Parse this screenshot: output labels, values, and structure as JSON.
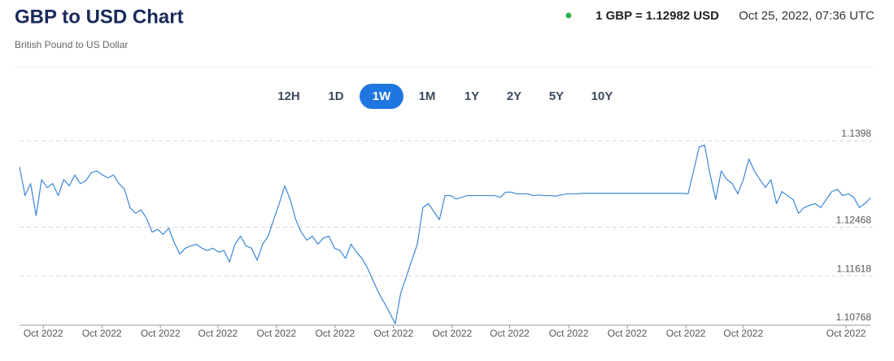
{
  "header": {
    "title": "GBP to USD Chart",
    "subtitle": "British Pound to US Dollar",
    "rate": "1 GBP = 1.12982 USD",
    "timestamp": "Oct 25, 2022, 07:36 UTC"
  },
  "ranges": [
    "12H",
    "1D",
    "1W",
    "1M",
    "1Y",
    "2Y",
    "5Y",
    "10Y"
  ],
  "active_range": 2,
  "chart_data": {
    "type": "line",
    "color": "#3b87d8",
    "values": [
      1.1352,
      1.1302,
      1.1323,
      1.1267,
      1.133,
      1.1316,
      1.1323,
      1.1302,
      1.133,
      1.1319,
      1.1338,
      1.1323,
      1.1328,
      1.1342,
      1.1345,
      1.1338,
      1.1333,
      1.1338,
      1.1323,
      1.1313,
      1.1281,
      1.1271,
      1.1277,
      1.1262,
      1.1238,
      1.1243,
      1.1234,
      1.1245,
      1.122,
      1.12,
      1.121,
      1.1214,
      1.1217,
      1.121,
      1.1206,
      1.121,
      1.1203,
      1.1206,
      1.1186,
      1.1217,
      1.1231,
      1.1214,
      1.121,
      1.1189,
      1.1217,
      1.1231,
      1.126,
      1.1288,
      1.1319,
      1.1295,
      1.126,
      1.1238,
      1.1224,
      1.1231,
      1.1217,
      1.1228,
      1.1231,
      1.121,
      1.1206,
      1.1192,
      1.1217,
      1.1203,
      1.1192,
      1.1175,
      1.1153,
      1.1132,
      1.1115,
      1.1097,
      1.1078,
      1.1132,
      1.116,
      1.1189,
      1.1217,
      1.1281,
      1.1288,
      1.1274,
      1.126,
      1.1302,
      1.1302,
      1.1296,
      1.1299,
      1.1302,
      1.1302,
      1.1302,
      1.1302,
      1.1302,
      1.1302,
      1.1299,
      1.1308,
      1.1308,
      1.1305,
      1.1305,
      1.1305,
      1.1302,
      1.1303,
      1.1302,
      1.1302,
      1.1301,
      1.1303,
      1.1305,
      1.1305,
      1.1305,
      1.1306,
      1.1306,
      1.1306,
      1.1306,
      1.1306,
      1.1306,
      1.1306,
      1.1306,
      1.1306,
      1.1306,
      1.1306,
      1.1306,
      1.1306,
      1.1306,
      1.1306,
      1.1306,
      1.1306,
      1.1306,
      1.1306,
      1.1305,
      1.1345,
      1.1387,
      1.139,
      1.1338,
      1.1295,
      1.1345,
      1.133,
      1.1323,
      1.1305,
      1.133,
      1.1366,
      1.1345,
      1.133,
      1.1316,
      1.133,
      1.1288,
      1.1309,
      1.1302,
      1.1295,
      1.1271,
      1.1281,
      1.1285,
      1.1288,
      1.1281,
      1.1295,
      1.1309,
      1.1313,
      1.1302,
      1.1305,
      1.1299,
      1.1281,
      1.1288,
      1.1298
    ],
    "xlim": [
      0,
      154
    ],
    "xticks": [
      {
        "value": 4.3,
        "label": "Oct 2022"
      },
      {
        "value": 14.9,
        "label": "Oct 2022"
      },
      {
        "value": 25.5,
        "label": "Oct 2022"
      },
      {
        "value": 35.9,
        "label": "Oct 2022"
      },
      {
        "value": 46.5,
        "label": "Oct 2022"
      },
      {
        "value": 57.1,
        "label": "Oct 2022"
      },
      {
        "value": 67.7,
        "label": "Oct 2022"
      },
      {
        "value": 78.3,
        "label": "Oct 2022"
      },
      {
        "value": 88.7,
        "label": "Oct 2022"
      },
      {
        "value": 99.4,
        "label": "Oct 2022"
      },
      {
        "value": 110,
        "label": "Oct 2022"
      },
      {
        "value": 120.6,
        "label": "Oct 2022"
      },
      {
        "value": 131,
        "label": "Oct 2022"
      },
      {
        "value": 149.6,
        "label": "Oct 2022"
      }
    ],
    "ylim": [
      1.10768,
      1.1398
    ],
    "yticks": [
      1.10768,
      1.11618,
      1.12468,
      1.1398
    ],
    "grid": true
  }
}
